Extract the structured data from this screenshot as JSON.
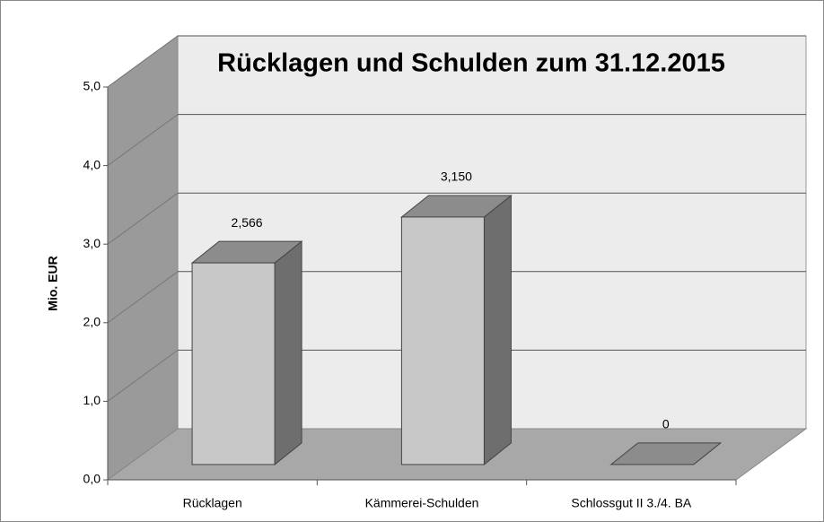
{
  "chart_data": {
    "type": "bar3d",
    "title": "Rücklagen und Schulden zum 31.12.2015",
    "ylabel": "Mio. EUR",
    "categories": [
      "Rücklagen",
      "Kämmerei-Schulden",
      "Schlossgut II 3./4. BA"
    ],
    "values": [
      2.566,
      3.15,
      0
    ],
    "value_labels": [
      "2,566",
      "3,150",
      "0"
    ],
    "color": "#c8c8c8",
    "ylim": [
      0,
      5
    ],
    "yticks": [
      {
        "value": 0,
        "label": "0,0"
      },
      {
        "value": 1,
        "label": "1,0"
      },
      {
        "value": 2,
        "label": "2,0"
      },
      {
        "value": 3,
        "label": "3,0"
      },
      {
        "value": 4,
        "label": "4,0"
      },
      {
        "value": 5,
        "label": "5,0"
      }
    ],
    "grid": true
  }
}
